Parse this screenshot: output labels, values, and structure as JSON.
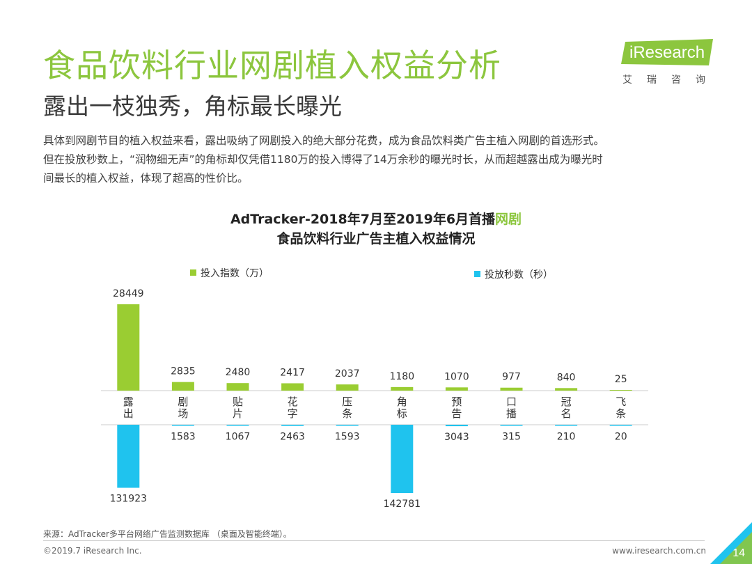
{
  "header": {
    "title": "食品饮料行业网剧植入权益分析",
    "subtitle": "露出一枝独秀，角标最长曝光"
  },
  "logo": {
    "text": "iResearch",
    "cn": "艾瑞咨询",
    "color": "#8cc63e"
  },
  "description": [
    "具体到网剧节目的植入权益来看，露出吸纳了网剧投入的绝大部分花费，成为食品饮料类广告主植入网剧的首选形式。",
    "但在投放秒数上，“润物细无声”的角标却仅凭借1180万的投入博得了14万余秒的曝光时长，从而超越露出成为曝光时",
    "间最长的植入权益，体现了超高的性价比。"
  ],
  "chart_title": {
    "line1_prefix": "AdTracker-2018年7月至2019年6月首播",
    "line1_highlight": "网剧",
    "line2": "食品饮料行业广告主植入权益情况"
  },
  "chart_data": {
    "type": "bar",
    "categories": [
      "露出",
      "剧场",
      "贴片",
      "花字",
      "压条",
      "角标",
      "预告",
      "口播",
      "冠名",
      "飞条"
    ],
    "series": [
      {
        "name": "投入指数（万）",
        "color": "#9acd32",
        "direction": "up",
        "values": [
          28449,
          2835,
          2480,
          2417,
          2037,
          1180,
          1070,
          977,
          840,
          25
        ]
      },
      {
        "name": "投放秒数（秒）",
        "color": "#1fc3ee",
        "direction": "down",
        "values": [
          131923,
          1583,
          1067,
          2463,
          1593,
          142781,
          3043,
          315,
          210,
          20
        ]
      }
    ],
    "grid": false
  },
  "footer": {
    "source": "来源：AdTracker多平台网络广告监测数据库 （桌面及智能终端）。",
    "copyright": "©2019.7 iResearch Inc.",
    "url": "www.iresearch.com.cn",
    "page": "14"
  },
  "colors": {
    "accent_green": "#8cc63e",
    "accent_blue": "#1fc3ee"
  }
}
